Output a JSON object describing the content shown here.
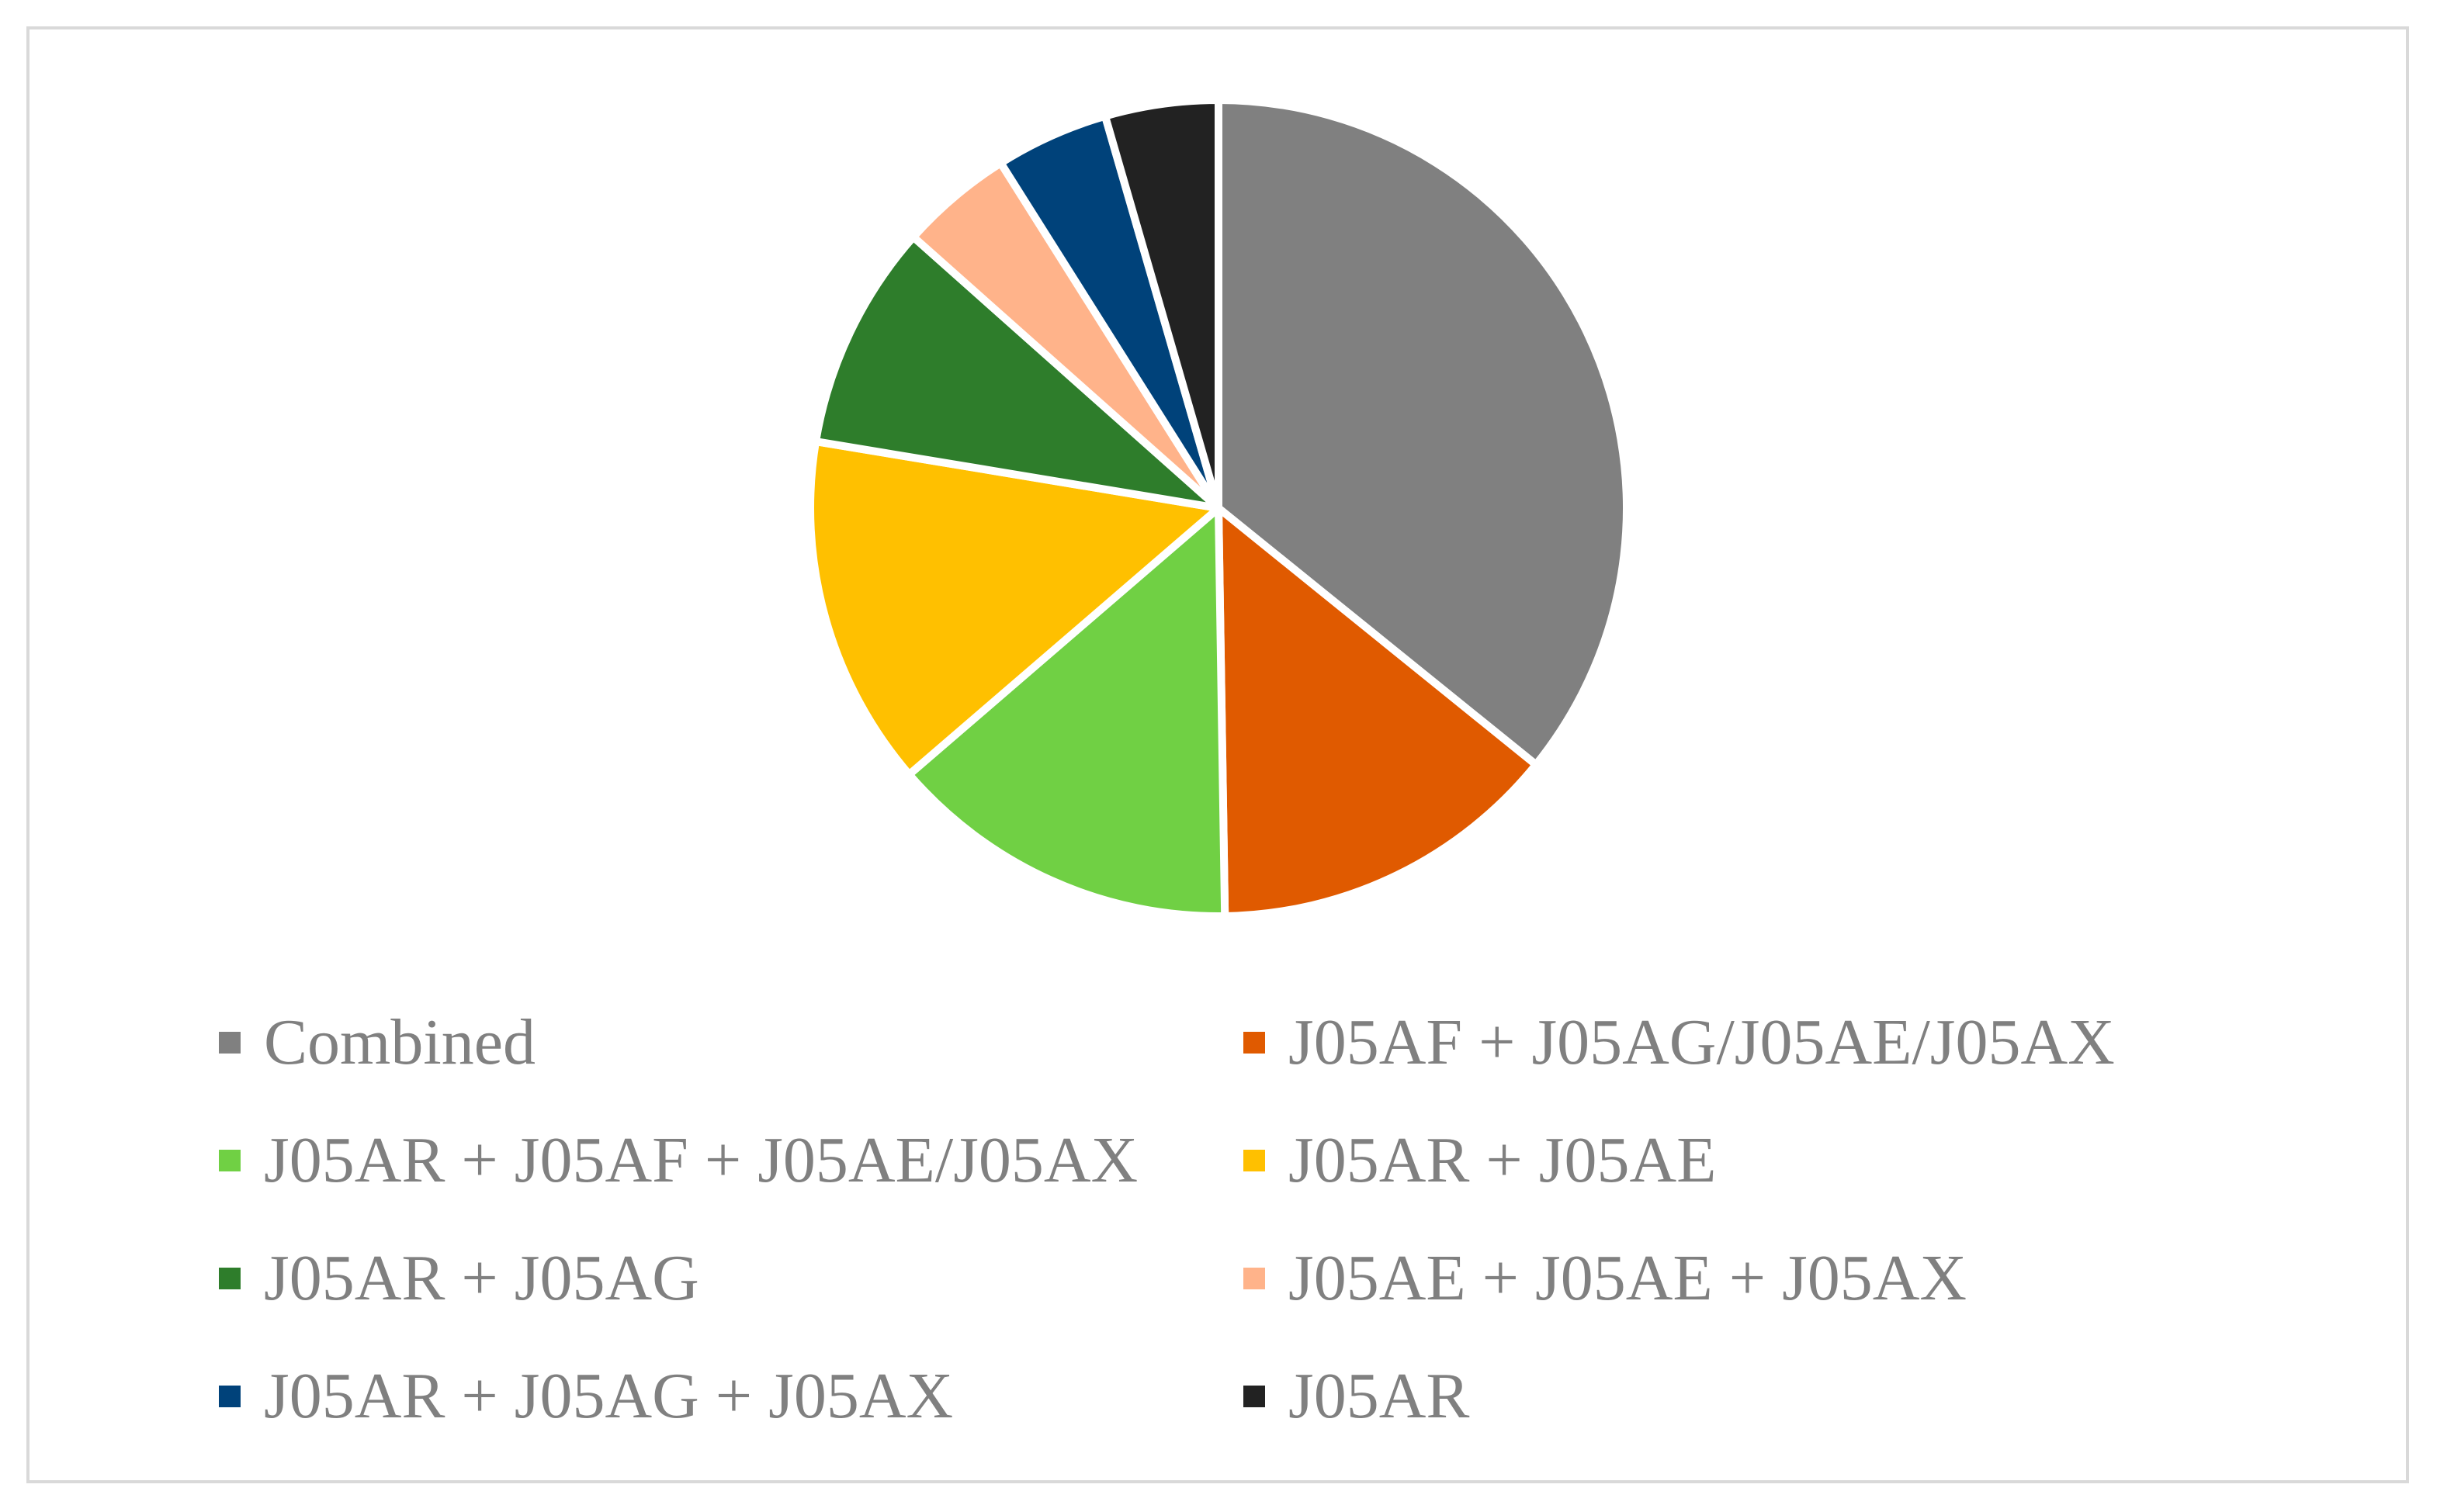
{
  "chart_data": {
    "type": "pie",
    "title": "",
    "start_angle_deg": 0,
    "direction": "clockwise",
    "legend_position": "bottom",
    "slices": [
      {
        "name": "Combined",
        "value": 36,
        "color": "#808080"
      },
      {
        "name": "J05AF + J05AG/J05AE/J05AX",
        "value": 14,
        "color": "#E05A00"
      },
      {
        "name": "J05AR + J05AF + J05AE/J05AX",
        "value": 14,
        "color": "#70D044"
      },
      {
        "name": "J05AR + J05AE",
        "value": 14,
        "color": "#FFC000"
      },
      {
        "name": "J05AR + J05AG",
        "value": 9,
        "color": "#2E7D2B"
      },
      {
        "name": "J05AE + J05AE + J05AX",
        "value": 4.5,
        "color": "#FFB38A"
      },
      {
        "name": "J05AR + J05AG + J05AX",
        "value": 4.5,
        "color": "#00427A"
      },
      {
        "name": "J05AR",
        "value": 4.5,
        "color": "#222222"
      }
    ]
  },
  "legend": {
    "items": [
      {
        "label": "Combined",
        "color": "#808080"
      },
      {
        "label": "J05AF + J05AG/J05AE/J05AX",
        "color": "#E05A00"
      },
      {
        "label": "J05AR + J05AF + J05AE/J05AX",
        "color": "#70D044"
      },
      {
        "label": "J05AR + J05AE",
        "color": "#FFC000"
      },
      {
        "label": "J05AR + J05AG",
        "color": "#2E7D2B"
      },
      {
        "label": "J05AE + J05AE + J05AX",
        "color": "#FFB38A"
      },
      {
        "label": "J05AR + J05AG + J05AX",
        "color": "#00427A"
      },
      {
        "label": "J05AR",
        "color": "#222222"
      }
    ]
  }
}
